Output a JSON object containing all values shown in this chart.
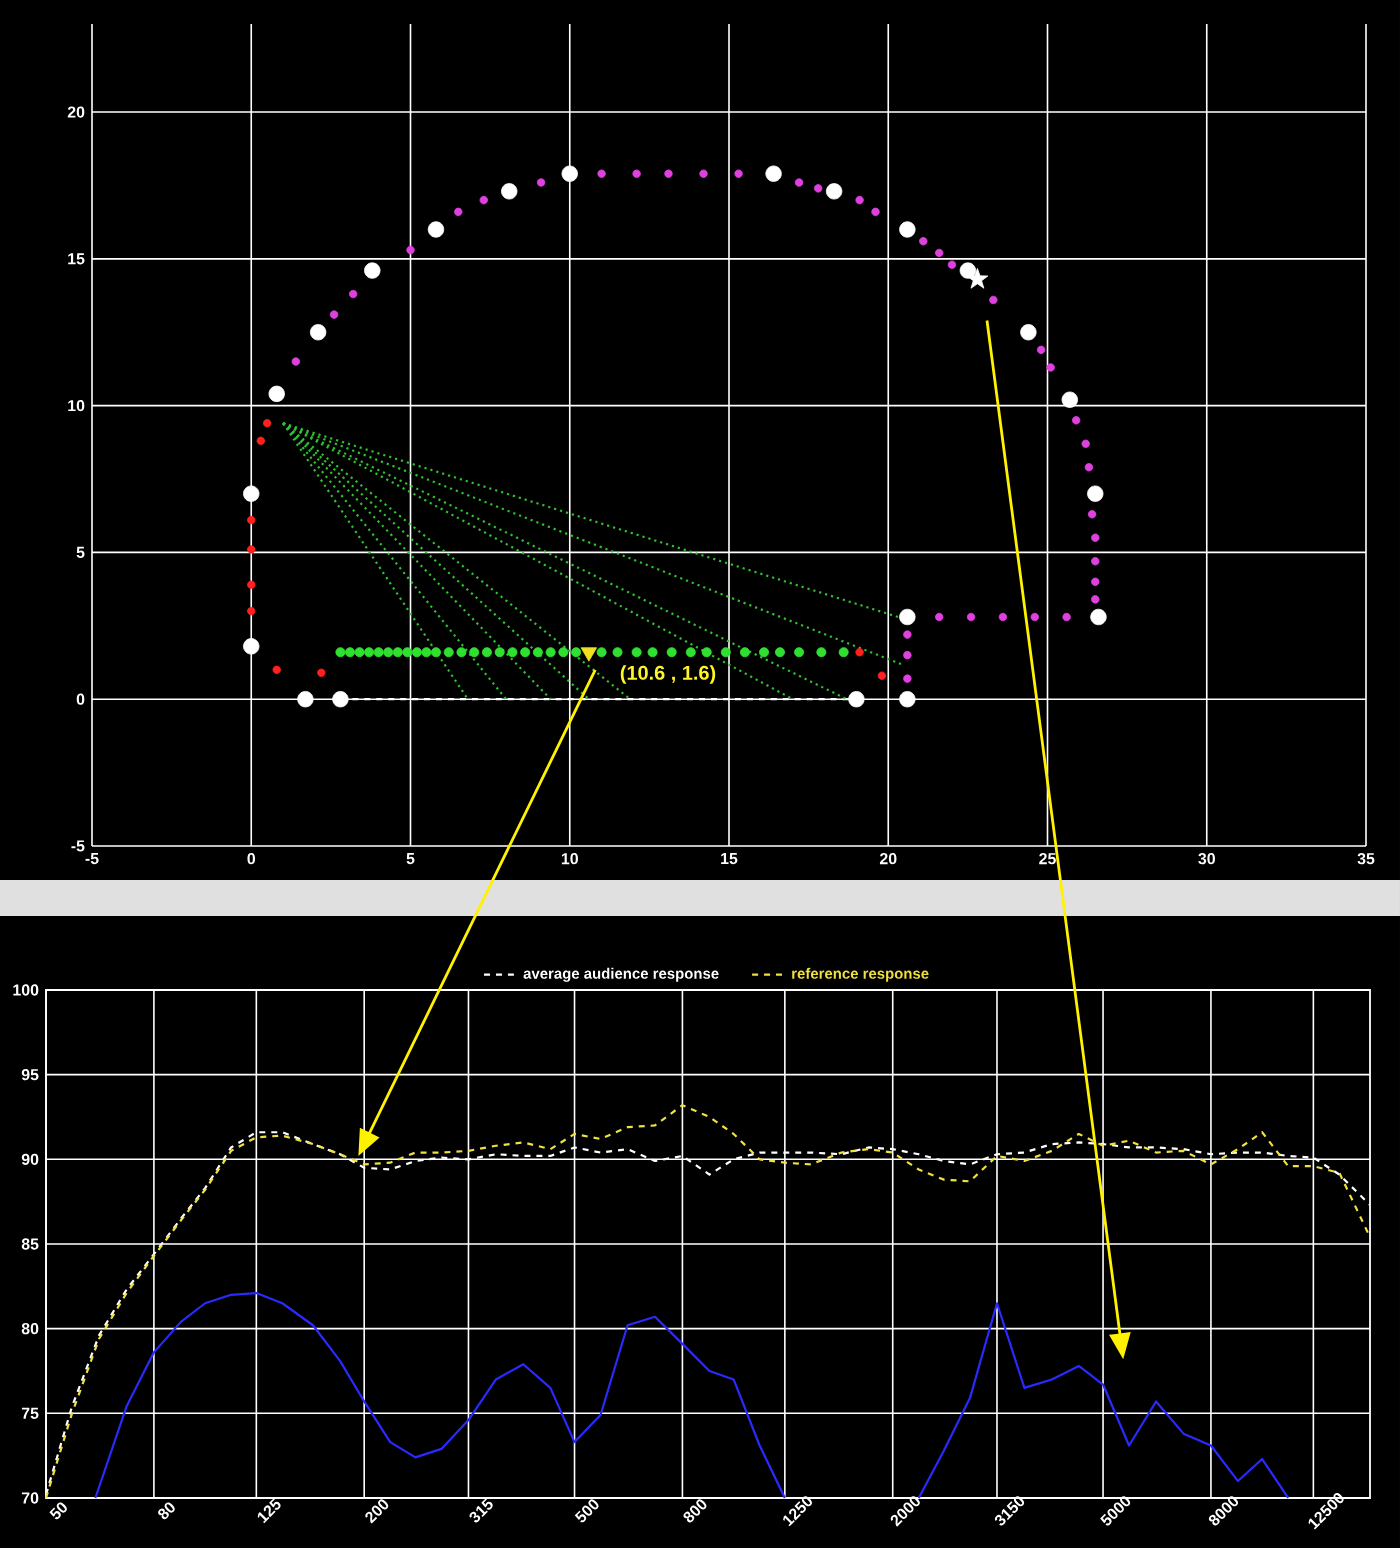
{
  "chart_data": [
    {
      "type": "scatter",
      "xlim": [
        -5,
        35
      ],
      "ylim": [
        -5,
        23
      ],
      "xticks": [
        -5,
        0,
        5,
        10,
        15,
        20,
        25,
        30,
        35
      ],
      "yticks": [
        -5,
        0,
        5,
        10,
        15,
        20
      ],
      "grid": true,
      "annotations": [
        {
          "text": "(10.6 , 1.6)",
          "x": 10.6,
          "y": 1.6
        }
      ],
      "series": [
        {
          "type": "line",
          "line_style": "dashed",
          "color": "#ffffff",
          "x": [
            2.8,
            19
          ],
          "values": [
            0,
            0
          ]
        },
        {
          "type": "line",
          "line_style": "dotted",
          "color": "#30c030",
          "x": [
            1.0,
            6.8
          ],
          "values": [
            9.4,
            0
          ]
        },
        {
          "type": "line",
          "line_style": "dotted",
          "color": "#30c030",
          "x": [
            1.0,
            8.0
          ],
          "values": [
            9.4,
            0
          ]
        },
        {
          "type": "line",
          "line_style": "dotted",
          "color": "#30c030",
          "x": [
            1.0,
            9.4
          ],
          "values": [
            9.4,
            0
          ]
        },
        {
          "type": "line",
          "line_style": "dotted",
          "color": "#30c030",
          "x": [
            1.0,
            10.6
          ],
          "values": [
            9.4,
            0
          ]
        },
        {
          "type": "line",
          "line_style": "dotted",
          "color": "#30c030",
          "x": [
            1.0,
            11.9
          ],
          "values": [
            9.4,
            0
          ]
        },
        {
          "type": "line",
          "line_style": "dotted",
          "color": "#30c030",
          "x": [
            1.0,
            17.0
          ],
          "values": [
            9.4,
            0
          ]
        },
        {
          "type": "line",
          "line_style": "dotted",
          "color": "#30c030",
          "x": [
            1.0,
            18.7
          ],
          "values": [
            9.4,
            0
          ]
        },
        {
          "type": "line",
          "line_style": "dotted",
          "color": "#30c030",
          "x": [
            1.0,
            20.4
          ],
          "values": [
            9.4,
            1.2
          ]
        },
        {
          "type": "line",
          "line_style": "dotted",
          "color": "#30c030",
          "x": [
            1.0,
            20.6
          ],
          "values": [
            9.4,
            2.7
          ]
        },
        {
          "marker": "circle",
          "color": "#ffffff",
          "x": [
            0,
            1.7,
            2.8,
            19,
            20.6,
            20.6,
            26.6,
            26.5,
            25.7,
            24.4,
            22.5,
            20.6,
            18.3,
            16.4,
            10,
            8.1,
            5.8,
            3.8,
            2.1,
            0.8,
            0
          ],
          "values": [
            1.8,
            0,
            0,
            0,
            0,
            2.8,
            2.8,
            7,
            10.2,
            12.5,
            14.6,
            16,
            17.3,
            17.9,
            17.9,
            17.3,
            16,
            14.6,
            12.5,
            10.4,
            7
          ]
        },
        {
          "marker": "circle",
          "color": "#e040e0",
          "x": [
            1.4,
            2.6,
            3.2,
            5,
            6.5,
            7.3,
            9.1,
            11,
            12.1,
            13.1,
            14.2,
            15.3,
            17.2,
            17.8,
            19.1,
            19.6,
            21.1,
            21.6,
            22,
            23.3,
            24.8,
            25.1,
            25.9,
            26.2,
            26.3,
            26.4,
            26.5,
            26.5,
            26.5,
            26.5,
            25.6,
            24.6,
            23.6,
            22.6,
            21.6,
            20.6,
            20.6,
            20.6
          ],
          "values": [
            11.5,
            13.1,
            13.8,
            15.3,
            16.6,
            17,
            17.6,
            17.9,
            17.9,
            17.9,
            17.9,
            17.9,
            17.6,
            17.4,
            17,
            16.6,
            15.6,
            15.2,
            14.8,
            13.6,
            11.9,
            11.3,
            9.5,
            8.7,
            7.9,
            6.3,
            5.5,
            4.7,
            4,
            3.4,
            2.8,
            2.8,
            2.8,
            2.8,
            2.8,
            2.2,
            1.5,
            0.7
          ]
        },
        {
          "marker": "circle",
          "color": "#ff2020",
          "x": [
            0.5,
            0.3,
            0,
            0,
            0,
            0,
            0.8,
            2.2,
            19.1,
            19.8
          ],
          "values": [
            9.4,
            8.8,
            6.1,
            5.1,
            3.9,
            3.0,
            1.0,
            0.9,
            1.6,
            0.8
          ]
        },
        {
          "marker": "circle",
          "color": "#30e030",
          "x": [
            2.8,
            3.1,
            3.4,
            3.7,
            4.0,
            4.3,
            4.6,
            4.9,
            5.2,
            5.5,
            5.8,
            6.2,
            6.6,
            7.0,
            7.4,
            7.8,
            8.2,
            8.6,
            9.0,
            9.4,
            9.8,
            10.2,
            11.0,
            11.5,
            12.1,
            12.6,
            13.2,
            13.8,
            14.3,
            14.9,
            15.5,
            16.1,
            16.6,
            17.2,
            17.9,
            18.6
          ],
          "values": [
            1.6,
            1.6,
            1.6,
            1.6,
            1.6,
            1.6,
            1.6,
            1.6,
            1.6,
            1.6,
            1.6,
            1.6,
            1.6,
            1.6,
            1.6,
            1.6,
            1.6,
            1.6,
            1.6,
            1.6,
            1.6,
            1.6,
            1.6,
            1.6,
            1.6,
            1.6,
            1.6,
            1.6,
            1.6,
            1.6,
            1.6,
            1.6,
            1.6,
            1.6,
            1.6,
            1.6
          ]
        },
        {
          "marker": "triangle",
          "color": "#f0e020",
          "x": [
            10.6
          ],
          "values": [
            1.6
          ]
        },
        {
          "marker": "star",
          "color": "#ffffff",
          "x": [
            22.8
          ],
          "values": [
            14.3
          ]
        }
      ]
    },
    {
      "type": "line",
      "log": "x",
      "xlim": [
        50,
        16000
      ],
      "ylim": [
        70,
        100
      ],
      "xticks": [
        50,
        80,
        125,
        200,
        315,
        500,
        800,
        1250,
        2000,
        3150,
        5000,
        8000,
        12500
      ],
      "yticks": [
        70,
        75,
        80,
        85,
        90,
        95,
        100
      ],
      "grid": true,
      "legend": "top",
      "series": [
        {
          "name": "average audience response",
          "color": "#ffffff",
          "line_style": "dashed",
          "x": [
            50,
            56,
            63,
            71,
            80,
            90,
            100,
            112,
            125,
            140,
            160,
            180,
            200,
            224,
            250,
            280,
            315,
            355,
            400,
            450,
            500,
            560,
            630,
            710,
            800,
            900,
            1000,
            1120,
            1250,
            1400,
            1600,
            1800,
            2000,
            2240,
            2500,
            2800,
            3150,
            3550,
            4000,
            4500,
            5000,
            5600,
            6300,
            7100,
            8000,
            9000,
            10000,
            11200,
            12500,
            14000,
            16000
          ],
          "values": [
            70.2,
            75.4,
            79.6,
            82.3,
            84.4,
            86.5,
            88.3,
            90.7,
            91.6,
            91.6,
            90.9,
            90.3,
            89.5,
            89.4,
            89.9,
            90.1,
            90,
            90.3,
            90.2,
            90.2,
            90.7,
            90.4,
            90.6,
            89.9,
            90.2,
            89.1,
            90,
            90.4,
            90.4,
            90.4,
            90.3,
            90.7,
            90.6,
            90.3,
            89.9,
            89.7,
            90.3,
            90.4,
            90.9,
            91,
            90.9,
            90.7,
            90.7,
            90.6,
            90.3,
            90.4,
            90.4,
            90.2,
            90.1,
            89.1,
            87.3
          ]
        },
        {
          "name": "reference response",
          "color": "#f0e040",
          "line_style": "dashed",
          "x": [
            50,
            56,
            63,
            71,
            80,
            90,
            100,
            112,
            125,
            140,
            160,
            180,
            200,
            224,
            250,
            280,
            315,
            355,
            400,
            450,
            500,
            560,
            630,
            710,
            800,
            900,
            1000,
            1120,
            1250,
            1400,
            1600,
            1800,
            2000,
            2240,
            2500,
            2800,
            3150,
            3550,
            4000,
            4500,
            5000,
            5600,
            6300,
            7100,
            8000,
            9000,
            10000,
            11200,
            12500,
            14000,
            16000
          ],
          "values": [
            70,
            75,
            79.4,
            82.1,
            84.3,
            86.4,
            88.2,
            90.5,
            91.3,
            91.4,
            90.9,
            90.3,
            89.7,
            89.8,
            90.4,
            90.4,
            90.5,
            90.8,
            91,
            90.6,
            91.5,
            91.2,
            91.9,
            92,
            93.2,
            92.5,
            91.5,
            90,
            89.8,
            89.7,
            90.4,
            90.6,
            90.4,
            89.4,
            88.8,
            88.7,
            90.2,
            89.9,
            90.5,
            91.5,
            90.8,
            91.1,
            90.4,
            90.5,
            89.7,
            90.6,
            91.6,
            89.6,
            89.6,
            89.2,
            85.4
          ]
        },
        {
          "color": "#2a2aff",
          "line_style": "solid",
          "x": [
            62,
            71,
            80,
            90,
            100,
            112,
            125,
            140,
            160,
            180,
            200,
            224,
            250,
            280,
            315,
            355,
            400,
            450,
            500,
            560,
            630,
            710,
            800,
            900,
            1000,
            1120,
            1250,
            1800,
            2240,
            2500,
            2800,
            3150,
            3550,
            4000,
            4500,
            5000,
            5600,
            6300,
            7100,
            8000,
            9000,
            10000,
            11200
          ],
          "values": [
            70,
            75.4,
            78.6,
            80.4,
            81.5,
            82,
            82.1,
            81.5,
            80.2,
            78.1,
            75.7,
            73.3,
            72.4,
            72.9,
            74.6,
            77,
            77.9,
            76.5,
            73.3,
            74.9,
            80.2,
            80.7,
            79.1,
            77.5,
            77,
            73.1,
            70,
            null,
            70,
            72.8,
            75.9,
            81.5,
            76.5,
            77,
            77.8,
            76.7,
            73.1,
            75.7,
            73.8,
            73.1,
            71,
            72.3,
            70
          ]
        }
      ]
    }
  ]
}
